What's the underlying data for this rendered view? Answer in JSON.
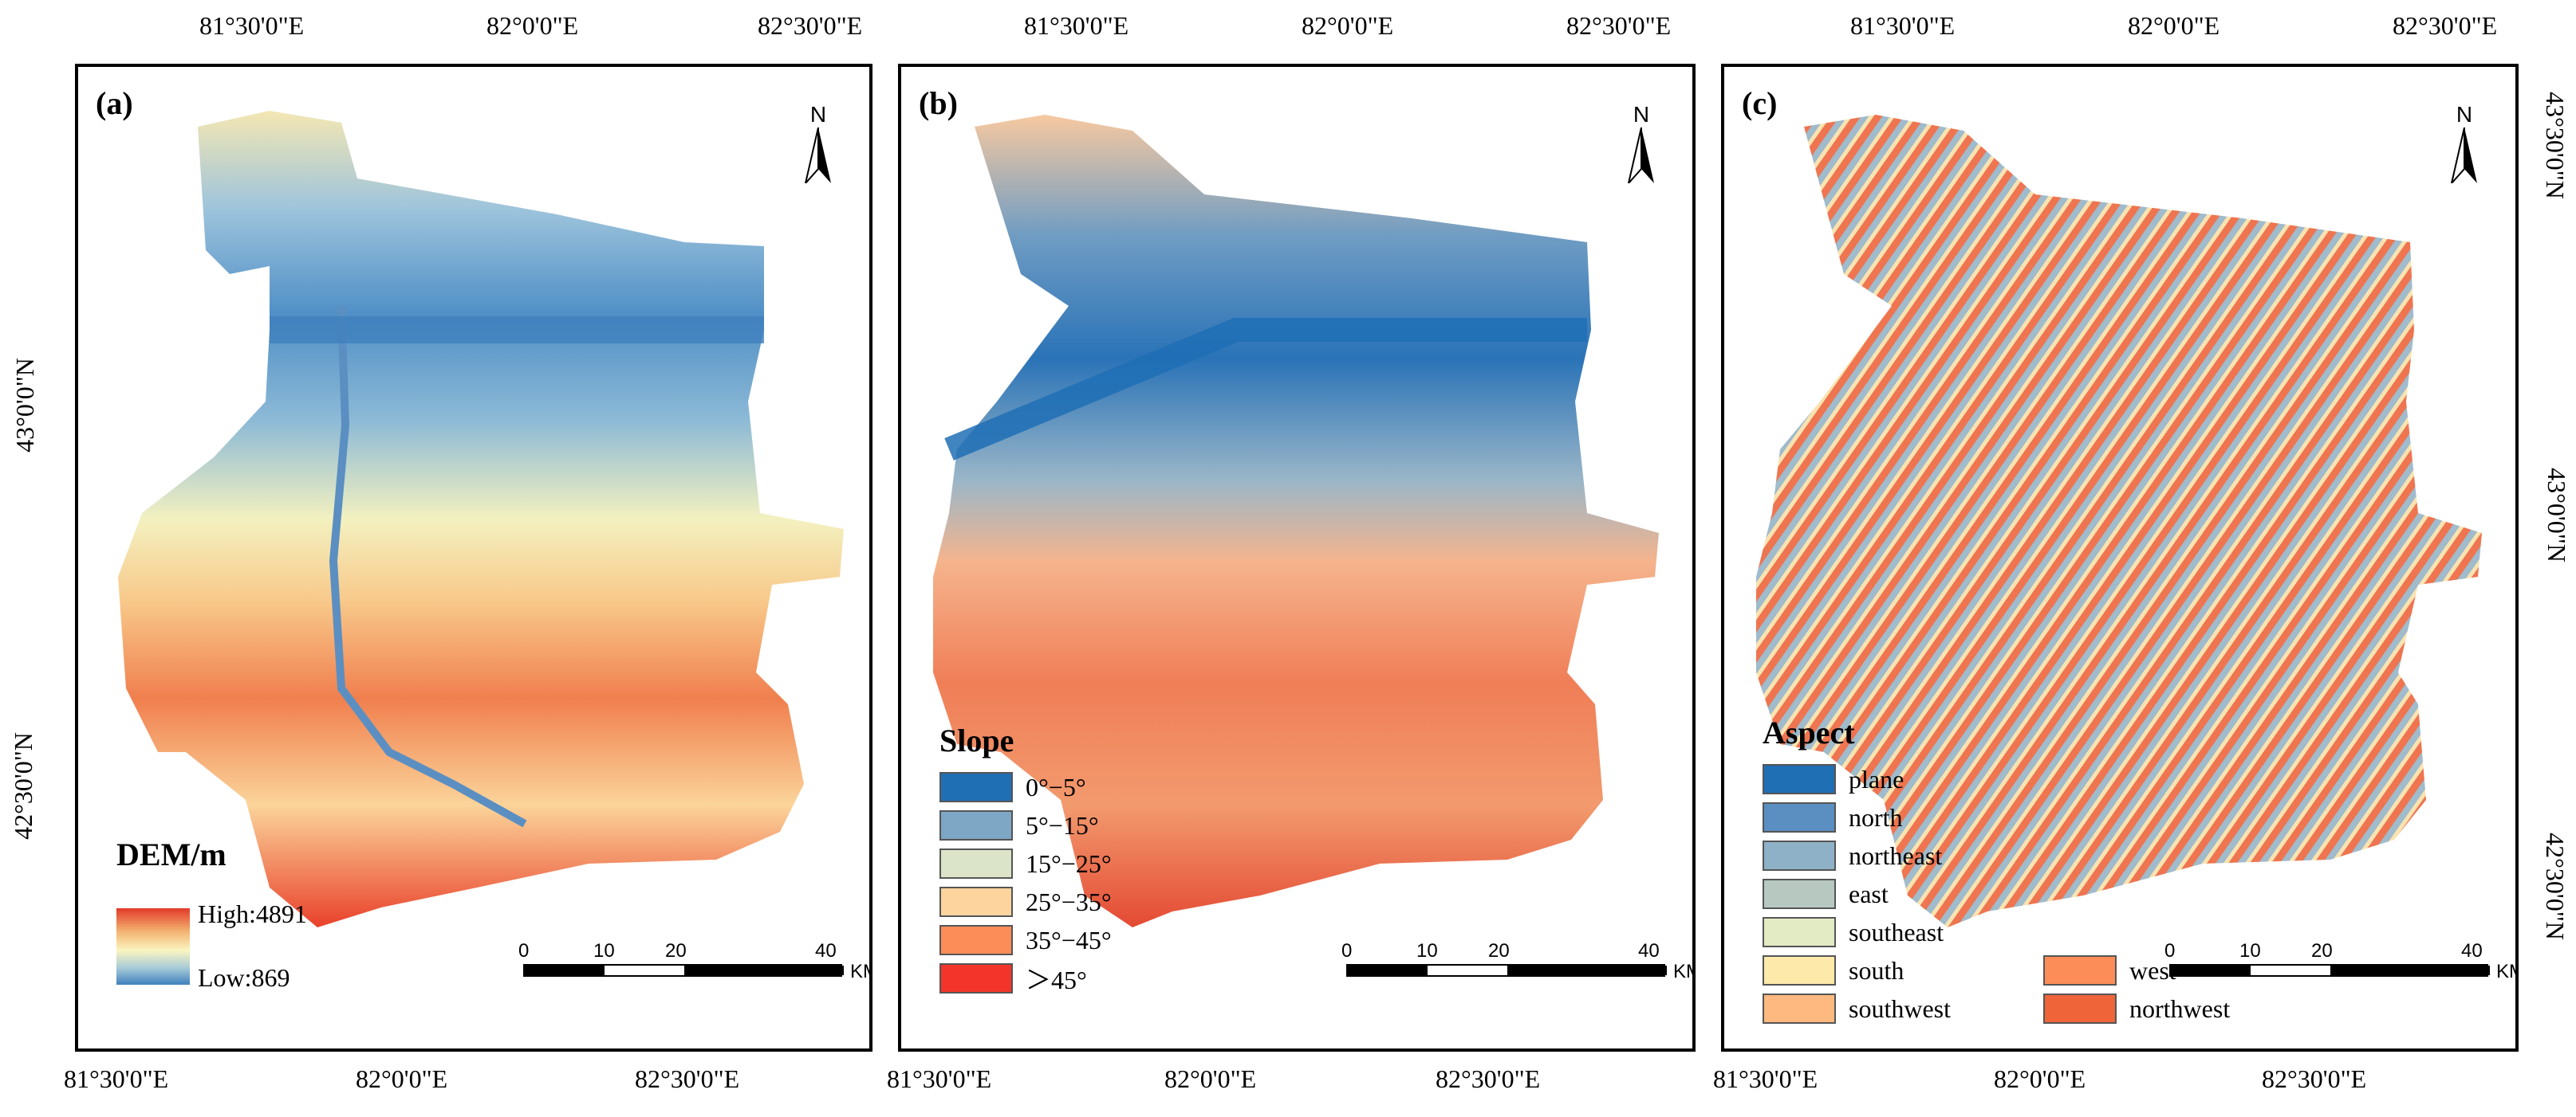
{
  "panels": [
    {
      "id": "a",
      "label": "(a)",
      "top_ticks": [
        "81°30'0\"E",
        "82°0'0\"E",
        "82°30'0\"E"
      ],
      "bottom_ticks": [
        "81°30'0\"E",
        "82°0'0\"E",
        "82°30'0\"E"
      ],
      "left_ticks": [
        "43°0'0\"N",
        "42°30'0\"N"
      ],
      "legend_title": "DEM/m",
      "high_label": "High:4891",
      "low_label": "Low:869"
    },
    {
      "id": "b",
      "label": "(b)",
      "top_ticks": [
        "81°30'0\"E",
        "82°0'0\"E",
        "82°30'0\"E"
      ],
      "bottom_ticks": [
        "81°30'0\"E",
        "82°0'0\"E",
        "82°30'0\"E"
      ],
      "legend_title": "Slope",
      "legend_items": [
        {
          "label": "0°−5°",
          "color": "#1f6fb5"
        },
        {
          "label": "5°−15°",
          "color": "#7ea6c5"
        },
        {
          "label": "15°−25°",
          "color": "#dbe4c8"
        },
        {
          "label": "25°−35°",
          "color": "#fdd49e"
        },
        {
          "label": "35°−45°",
          "color": "#fc8d59"
        },
        {
          "label": "＞45°",
          "color": "#f2342a"
        }
      ]
    },
    {
      "id": "c",
      "label": "(c)",
      "top_ticks": [
        "81°30'0\"E",
        "82°0'0\"E",
        "82°30'0\"E"
      ],
      "bottom_ticks": [
        "81°30'0\"E",
        "82°0'0\"E",
        "82°30'0\"E"
      ],
      "right_ticks": [
        "43°30'0\"N",
        "43°0'0\"N",
        "42°30'0\"N"
      ],
      "legend_title": "Aspect",
      "legend_items": [
        {
          "label": "plane",
          "color": "#1f6fb5"
        },
        {
          "label": "north",
          "color": "#5b8fc2"
        },
        {
          "label": "northeast",
          "color": "#8fb1c7"
        },
        {
          "label": "east",
          "color": "#b7c8c0"
        },
        {
          "label": "southeast",
          "color": "#e2ebc4"
        },
        {
          "label": "south",
          "color": "#fde9aa"
        },
        {
          "label": "southwest",
          "color": "#fdb97f"
        },
        {
          "label": "west",
          "color": "#fc8d59"
        },
        {
          "label": "northwest",
          "color": "#f0643a"
        }
      ]
    }
  ],
  "north_label": "N",
  "scale": {
    "labels": [
      "0",
      "10",
      "20",
      "40"
    ],
    "unit": "KM"
  }
}
